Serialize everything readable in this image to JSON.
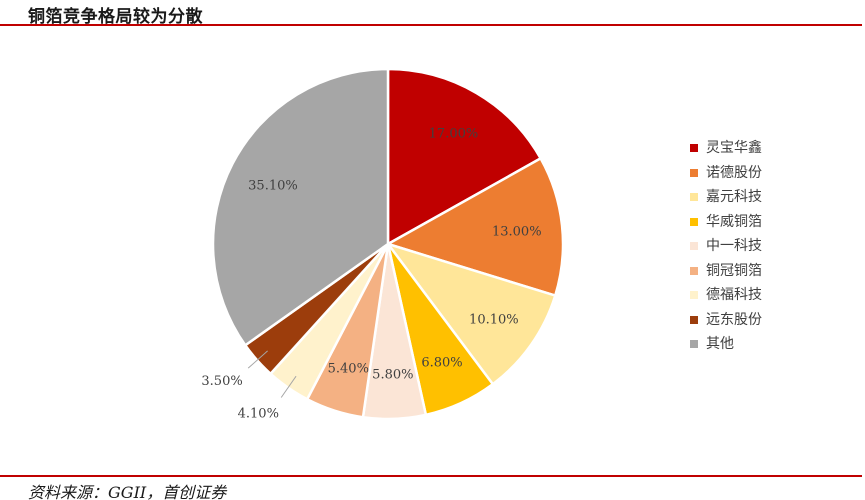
{
  "title": "铜箔竞争格局较为分散",
  "source": "资料来源：GGII，首创证券",
  "colors": {
    "accent_rule": "#c00000"
  },
  "chart_data": {
    "type": "pie",
    "start_angle_deg": 0,
    "direction": "clockwise",
    "legend_position": "right",
    "slices": [
      {
        "name": "灵宝华鑫",
        "value": 17.0,
        "label": "17.00%",
        "color": "#c00000"
      },
      {
        "name": "诺德股份",
        "value": 13.0,
        "label": "13.00%",
        "color": "#ed7d31"
      },
      {
        "name": "嘉元科技",
        "value": 10.1,
        "label": "10.10%",
        "color": "#ffe699"
      },
      {
        "name": "华威铜箔",
        "value": 6.8,
        "label": "6.80%",
        "color": "#ffc000"
      },
      {
        "name": "中一科技",
        "value": 5.8,
        "label": "5.80%",
        "color": "#fbe5d6"
      },
      {
        "name": "铜冠铜箔",
        "value": 5.4,
        "label": "5.40%",
        "color": "#f4b183"
      },
      {
        "name": "德福科技",
        "value": 4.1,
        "label": "4.10%",
        "color": "#fff2cc"
      },
      {
        "name": "远东股份",
        "value": 3.5,
        "label": "3.50%",
        "color": "#9c3d0c"
      },
      {
        "name": "其他",
        "value": 35.1,
        "label": "35.10%",
        "color": "#a6a6a6"
      }
    ]
  }
}
